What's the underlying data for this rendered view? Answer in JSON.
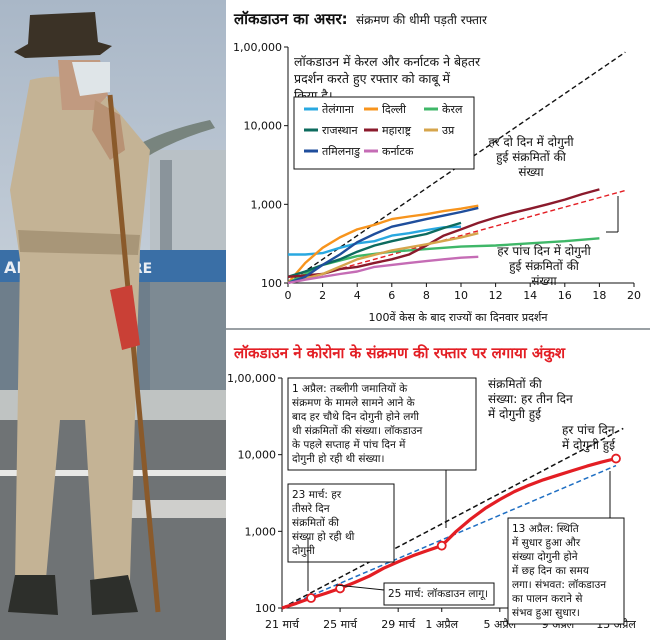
{
  "chart_data": [
    {
      "type": "line",
      "title": "लॉकडाउन का असर:",
      "subtitle": "संक्रमण की धीमी पड़ती रफ्तार",
      "xlabel": "100वें केस के बाद राज्यों का दिनवार प्रदर्शन",
      "ylabel": "",
      "y_scale": "log",
      "ylim": [
        100,
        100000
      ],
      "xlim": [
        0,
        20
      ],
      "y_ticks": [
        "100",
        "1,000",
        "10,000",
        "1,00,000"
      ],
      "x_ticks": [
        "0",
        "2",
        "4",
        "6",
        "8",
        "10",
        "12",
        "14",
        "16",
        "18",
        "20"
      ],
      "grid": false,
      "legend_position": "top-left",
      "note": "लॉकडाउन में केरल और कर्नाटक ने बेहतर प्रदर्शन करते हुए रफ्तार को काबू में किया है।",
      "annotations": [
        {
          "text": "हर दो दिन में दोगुनी हुई संक्रमितों की संख्या"
        },
        {
          "text": "हर पांच दिन में दोगुनी हुई संक्रमितों की संख्या"
        }
      ],
      "reference_lines": [
        {
          "doubling_days": 2,
          "x": [
            0,
            19.5
          ],
          "y": [
            100,
            86000
          ],
          "color": "#111111"
        },
        {
          "doubling_days": 5,
          "x": [
            0,
            19.5
          ],
          "y": [
            100,
            1500
          ],
          "color": "#e31e24"
        }
      ],
      "series": [
        {
          "name": "तेलंगाना",
          "color": "#29a8e0",
          "x": [
            0,
            1,
            2,
            3,
            4,
            5,
            6,
            7,
            8,
            9,
            10
          ],
          "y": [
            230,
            230,
            240,
            280,
            320,
            340,
            400,
            430,
            470,
            510,
            520
          ]
        },
        {
          "name": "दिल्ली",
          "color": "#f7941d",
          "x": [
            0,
            1,
            2,
            3,
            4,
            5,
            6,
            7,
            8,
            9,
            10,
            11
          ],
          "y": [
            100,
            180,
            280,
            380,
            480,
            550,
            650,
            700,
            750,
            820,
            880,
            960
          ]
        },
        {
          "name": "केरल",
          "color": "#3fb768",
          "x": [
            0,
            2,
            4,
            6,
            8,
            10,
            12,
            14,
            16,
            18
          ],
          "y": [
            100,
            170,
            220,
            250,
            270,
            290,
            300,
            320,
            340,
            370
          ]
        },
        {
          "name": "राजस्थान",
          "color": "#0d6b5e",
          "x": [
            0,
            1,
            2,
            3,
            4,
            5,
            6,
            7,
            8,
            9,
            10
          ],
          "y": [
            120,
            140,
            170,
            200,
            250,
            300,
            340,
            380,
            420,
            500,
            580
          ]
        },
        {
          "name": "महाराष्ट्र",
          "color": "#8b1a2c",
          "x": [
            0,
            1,
            2,
            3,
            4,
            5,
            6,
            7,
            8,
            9,
            10,
            11,
            12,
            13,
            14,
            15,
            16,
            17,
            18
          ],
          "y": [
            120,
            125,
            130,
            150,
            160,
            180,
            200,
            230,
            300,
            400,
            480,
            580,
            680,
            780,
            880,
            1000,
            1150,
            1350,
            1550
          ]
        },
        {
          "name": "उप्र",
          "color": "#d6a54c",
          "x": [
            0,
            2,
            4,
            6,
            8,
            10,
            11
          ],
          "y": [
            100,
            130,
            200,
            260,
            310,
            380,
            430
          ]
        },
        {
          "name": "तमिलनाडु",
          "color": "#1f4e9c",
          "x": [
            0,
            1,
            2,
            3,
            4,
            5,
            6,
            7,
            8,
            9,
            10,
            11
          ],
          "y": [
            100,
            120,
            170,
            230,
            330,
            420,
            520,
            580,
            650,
            720,
            800,
            900
          ]
        },
        {
          "name": "कर्नाटक",
          "color": "#c56cb5",
          "x": [
            0,
            1,
            2,
            3,
            4,
            5,
            6,
            7,
            8,
            9,
            10,
            11
          ],
          "y": [
            100,
            110,
            120,
            130,
            140,
            160,
            170,
            180,
            190,
            200,
            210,
            215
          ]
        }
      ]
    },
    {
      "type": "line",
      "title": "लॉकडाउन ने कोरोना के संक्रमण की रफ्तार पर लगाया अंकुश",
      "xlabel": "",
      "ylabel": "",
      "y_scale": "log",
      "ylim": [
        100,
        100000
      ],
      "y_ticks": [
        "100",
        "1,000",
        "10,000",
        "1,00,000"
      ],
      "x": [
        "21 मार्च",
        "22 मार्च",
        "23 मार्च",
        "24 मार्च",
        "25 मार्च",
        "26 मार्च",
        "27 मार्च",
        "28 मार्च",
        "29 मार्च",
        "30 मार्च",
        "31 मार्च",
        "1 अप्रैल",
        "2 अप्रैल",
        "3 अप्रैल",
        "4 अप्रैल",
        "5 अप्रैल",
        "6 अप्रैल",
        "7 अप्रैल",
        "8 अप्रैल",
        "9 अप्रैल",
        "10 अप्रैल",
        "11 अप्रैल",
        "12 अप्रैल",
        "13 अप्रैल"
      ],
      "x_tick_labels": [
        "21 मार्च",
        "25 मार्च",
        "29 मार्च",
        "1 अप्रैल",
        "5 अप्रैल",
        "9 अप्रैल",
        "13 अप्रैल"
      ],
      "grid": false,
      "series": [
        {
          "name": "",
          "color": "#e31e24",
          "values": [
            100,
            115,
            135,
            155,
            180,
            215,
            260,
            330,
            400,
            480,
            560,
            650,
            1000,
            1450,
            2000,
            2600,
            3300,
            4000,
            4700,
            5400,
            6200,
            7100,
            8000,
            8900
          ]
        }
      ],
      "reference_lines": [
        {
          "label": "हर तीन दिन में दोगुनी हुई",
          "from": [
            0,
            100
          ],
          "to": [
            23.5,
            22000
          ],
          "color": "#111111"
        },
        {
          "label": "हर पांच दिन में दोगुनी हुई",
          "from": [
            0,
            100
          ],
          "to": [
            23,
            7200
          ],
          "color": "#1f6fc3"
        }
      ],
      "labels": {
        "three_day": "संक्रमितों की संख्या: हर तीन दिन में दोगुनी हुई",
        "five_day": "हर पांच दिन में दोगुनी हुई"
      },
      "annotations": [
        {
          "date": "1 अप्रैल",
          "text": "1 अप्रैल: तब्लीगी जमातियों के संक्रमण के मामले सामने आने के बाद हर चौथे दिन दोगुनी होने लगी थी संक्रमितों की संख्या। लॉकडाउन के पहले सप्ताह में पांच दिन में दोगुनी हो रही थी संख्या।"
        },
        {
          "date": "23 मार्च",
          "text": "23 मार्च: हर तीसरे दिन संक्रमितों की संख्या हो रही थी दोगुनी"
        },
        {
          "date": "25 मार्च",
          "text": "25 मार्च: लॉकडाउन लागू।"
        },
        {
          "date": "13 अप्रैल",
          "text": "13 अप्रैल: स्थिति में सुधार हुआ और संख्या दोगुनी होने में छह दिन का समय लगा। संभवत: लॉकडाउन का पालन कराने से संभव हुआ सुधार।"
        }
      ]
    }
  ]
}
